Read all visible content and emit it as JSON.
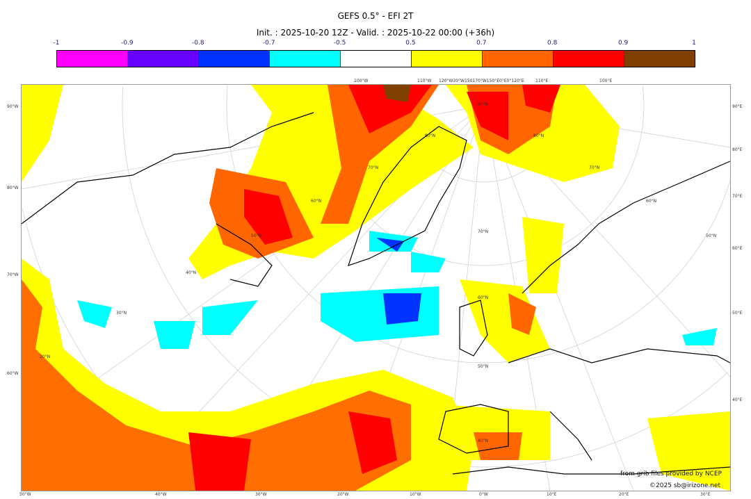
{
  "title": "GEFS 0.5° - EFI 2T",
  "subtitle": "Init. : 2025-10-20 12Z - Valid. : 2025-10-22 00:00 (+36h)",
  "colorbar": {
    "ticks": [
      "-1",
      "-0.9",
      "-0.8",
      "-0.7",
      "-0.5",
      "0.5",
      "0.7",
      "0.8",
      "0.9",
      "1"
    ],
    "colors": [
      "#ff00ff",
      "#6600ff",
      "#0033ff",
      "#00ffff",
      "#ffffff",
      "#ffff00",
      "#ff6600",
      "#ff0000",
      "#7f3f00"
    ]
  },
  "axes": {
    "bottom": [
      "50°W",
      "40°W",
      "30°W",
      "20°W",
      "10°W",
      "0°W",
      "10°E",
      "20°E",
      "30°E"
    ],
    "left": [
      "90°W",
      "80°W",
      "70°W",
      "60°W"
    ],
    "right": [
      "90°E",
      "80°E",
      "70°E",
      "60°E",
      "50°E",
      "40°E"
    ],
    "top": [
      "100°W",
      "110°W",
      "120°W30°W150170°W150°E0°E0°120°E",
      "110°E",
      "100°E"
    ]
  },
  "grid_labels": [
    "90°N",
    "80°N",
    "70°N",
    "60°N",
    "50°N",
    "40°N",
    "30°N",
    "20°N",
    "70°N",
    "60°N",
    "50°N",
    "40°N",
    "80°N",
    "70°N",
    "60°N",
    "50°N"
  ],
  "credits": {
    "source": "from grib files provided by NCEP",
    "copyright": "©2025 sb@irizone.net"
  }
}
